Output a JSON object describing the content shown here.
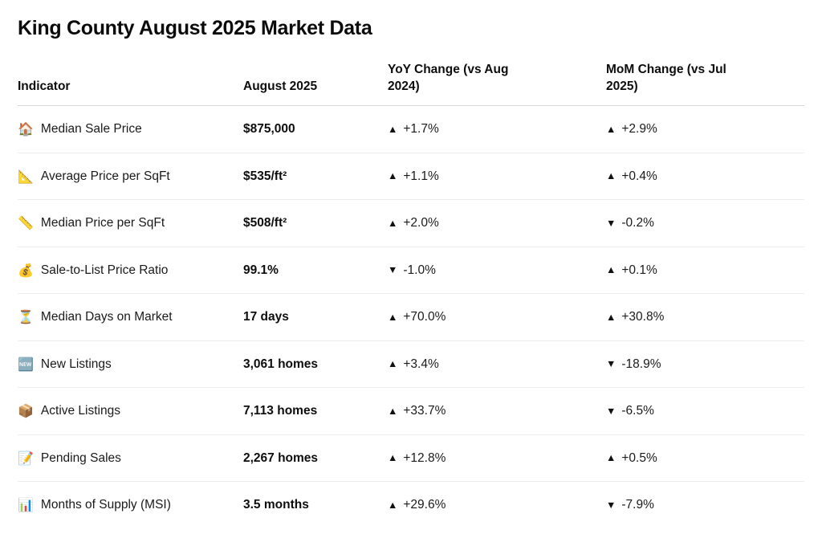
{
  "page": {
    "title": "King County August 2025 Market Data"
  },
  "colors": {
    "text": "#161616",
    "header_divider": "#d7d7d7",
    "row_divider": "#ededed",
    "arrow": "#111111"
  },
  "glyphs": {
    "up_arrow": "▲",
    "down_arrow": "▼"
  },
  "table": {
    "columns": [
      "Indicator",
      "August 2025",
      "YoY Change (vs Aug 2024)",
      "MoM Change (vs Jul 2025)"
    ],
    "rows": [
      {
        "icon_char": "🏠",
        "icon_name": "house-icon",
        "indicator": "Median Sale Price",
        "value": "$875,000",
        "yoy_dir": "up",
        "yoy": "+1.7%",
        "mom_dir": "up",
        "mom": "+2.9%"
      },
      {
        "icon_char": "📐",
        "icon_name": "triangular-ruler-icon",
        "indicator": "Average Price per SqFt",
        "value": "$535/ft²",
        "yoy_dir": "up",
        "yoy": "+1.1%",
        "mom_dir": "up",
        "mom": "+0.4%"
      },
      {
        "icon_char": "📏",
        "icon_name": "straight-ruler-icon",
        "indicator": "Median Price per SqFt",
        "value": "$508/ft²",
        "yoy_dir": "up",
        "yoy": "+2.0%",
        "mom_dir": "down",
        "mom": "-0.2%"
      },
      {
        "icon_char": "💰",
        "icon_name": "money-bag-icon",
        "indicator": "Sale-to-List Price Ratio",
        "value": "99.1%",
        "yoy_dir": "down",
        "yoy": "-1.0%",
        "mom_dir": "up",
        "mom": "+0.1%"
      },
      {
        "icon_char": "⏳",
        "icon_name": "hourglass-icon",
        "indicator": "Median Days on Market",
        "value": "17 days",
        "yoy_dir": "up",
        "yoy": "+70.0%",
        "mom_dir": "up",
        "mom": "+30.8%"
      },
      {
        "icon_char": "🆕",
        "icon_name": "new-button-icon",
        "indicator": "New Listings",
        "value": "3,061 homes",
        "yoy_dir": "up",
        "yoy": "+3.4%",
        "mom_dir": "down",
        "mom": "-18.9%"
      },
      {
        "icon_char": "📦",
        "icon_name": "package-icon",
        "indicator": "Active Listings",
        "value": "7,113 homes",
        "yoy_dir": "up",
        "yoy": "+33.7%",
        "mom_dir": "down",
        "mom": "-6.5%"
      },
      {
        "icon_char": "📝",
        "icon_name": "memo-icon",
        "indicator": "Pending Sales",
        "value": "2,267 homes",
        "yoy_dir": "up",
        "yoy": "+12.8%",
        "mom_dir": "up",
        "mom": "+0.5%"
      },
      {
        "icon_char": "📊",
        "icon_name": "bar-chart-icon",
        "indicator": "Months of Supply (MSI)",
        "value": "3.5 months",
        "yoy_dir": "up",
        "yoy": "+29.6%",
        "mom_dir": "down",
        "mom": "-7.9%"
      }
    ]
  }
}
